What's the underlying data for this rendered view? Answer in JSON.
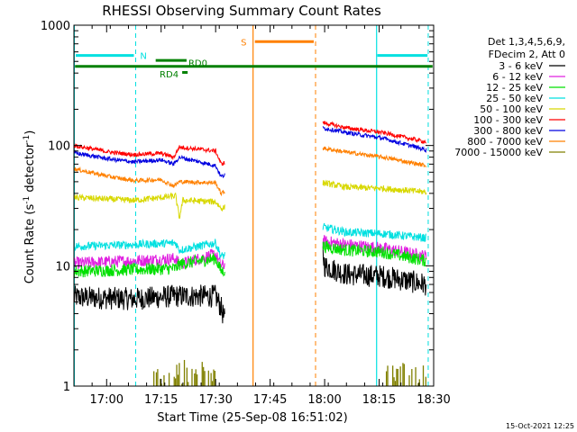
{
  "chart_data": {
    "type": "line",
    "title": "RHESSI Observing Summary Count Rates",
    "xlabel": "Start Time (25-Sep-08 16:51:02)",
    "ylabel_main": "Count Rate (s",
    "ylabel_sup1": "-1",
    "ylabel_mid": " detector",
    "ylabel_sup2": "-1",
    "ylabel_end": ")",
    "x_axis": {
      "min_minutes": 0,
      "max_minutes": 99,
      "ticks": [
        {
          "m": 9,
          "label": "17:00"
        },
        {
          "m": 24,
          "label": "17:15"
        },
        {
          "m": 39,
          "label": "17:30"
        },
        {
          "m": 54,
          "label": "17:45"
        },
        {
          "m": 69,
          "label": "18:00"
        },
        {
          "m": 84,
          "label": "18:15"
        },
        {
          "m": 99,
          "label": "18:30"
        }
      ]
    },
    "y_axis": {
      "scale": "log",
      "min": 1,
      "max": 1000,
      "ticks": [
        {
          "v": 1,
          "label": "1"
        },
        {
          "v": 10,
          "label": "10"
        },
        {
          "v": 100,
          "label": "100"
        },
        {
          "v": 1000,
          "label": "1000"
        }
      ]
    },
    "legend_title": [
      "Det 1,3,4,5,6,9,",
      "FDecim 2, Att 0"
    ],
    "legend_placement": "right",
    "series": [
      {
        "name": "3 - 6 keV",
        "color": "#000000",
        "points": [
          [
            0,
            5.5
          ],
          [
            16.5,
            5.3
          ],
          [
            28,
            5.6
          ],
          [
            39,
            5.6
          ],
          [
            40.5,
            4.5
          ],
          [
            41.5,
            3.5
          ],
          [
            68.5,
            13
          ],
          [
            69,
            10
          ],
          [
            75,
            8.5
          ],
          [
            85,
            8.2
          ],
          [
            97,
            7
          ]
        ]
      },
      {
        "name": "6 - 12 keV",
        "color": "#e020e0",
        "points": [
          [
            0,
            10.5
          ],
          [
            16.5,
            11
          ],
          [
            28,
            11.5
          ],
          [
            29,
            10.3
          ],
          [
            39,
            12.5
          ],
          [
            40.5,
            10
          ],
          [
            68.5,
            16
          ],
          [
            75,
            15
          ],
          [
            85,
            14
          ],
          [
            97,
            12
          ]
        ]
      },
      {
        "name": "12 - 25 keV",
        "color": "#00e000",
        "points": [
          [
            0,
            9
          ],
          [
            16.5,
            9.3
          ],
          [
            28,
            9.5
          ],
          [
            29,
            10.3
          ],
          [
            39,
            11.5
          ],
          [
            40.5,
            9
          ],
          [
            68.5,
            14.5
          ],
          [
            75,
            13.5
          ],
          [
            85,
            13
          ],
          [
            97,
            11
          ]
        ]
      },
      {
        "name": "25 - 50 keV",
        "color": "#00e0e0",
        "points": [
          [
            0,
            14.5
          ],
          [
            16.5,
            15
          ],
          [
            28,
            15.5
          ],
          [
            29,
            13.5
          ],
          [
            39,
            15.5
          ],
          [
            40.5,
            12
          ],
          [
            68.5,
            21
          ],
          [
            75,
            19
          ],
          [
            85,
            18.5
          ],
          [
            97,
            17
          ]
        ]
      },
      {
        "name": "50 - 100 keV",
        "color": "#d8d800",
        "points": [
          [
            0,
            37
          ],
          [
            16.5,
            35
          ],
          [
            28,
            38
          ],
          [
            29,
            25
          ],
          [
            30,
            35
          ],
          [
            39,
            34
          ],
          [
            40.5,
            30
          ],
          [
            68.5,
            49
          ],
          [
            75,
            45
          ],
          [
            85,
            44
          ],
          [
            97,
            41
          ]
        ]
      },
      {
        "name": "100 - 300 keV",
        "color": "#ff0000",
        "points": [
          [
            0,
            100
          ],
          [
            10,
            88
          ],
          [
            16.5,
            84
          ],
          [
            24,
            86
          ],
          [
            27.5,
            80
          ],
          [
            29,
            97
          ],
          [
            39,
            90
          ],
          [
            40.5,
            70
          ],
          [
            68.5,
            155
          ],
          [
            75,
            140
          ],
          [
            85,
            128
          ],
          [
            97,
            107
          ]
        ]
      },
      {
        "name": "300 - 800 keV",
        "color": "#0000e0",
        "points": [
          [
            0,
            87
          ],
          [
            10,
            77
          ],
          [
            16.5,
            73
          ],
          [
            24,
            76
          ],
          [
            27.5,
            70
          ],
          [
            29,
            80
          ],
          [
            39,
            68
          ],
          [
            40.5,
            55
          ],
          [
            68.5,
            140
          ],
          [
            75,
            128
          ],
          [
            85,
            115
          ],
          [
            97,
            92
          ]
        ]
      },
      {
        "name": "800 - 7000 keV",
        "color": "#ff8000",
        "points": [
          [
            0,
            64
          ],
          [
            10,
            55
          ],
          [
            16.5,
            51
          ],
          [
            24,
            52
          ],
          [
            27.5,
            46
          ],
          [
            29,
            50
          ],
          [
            39,
            49
          ],
          [
            40.5,
            40
          ],
          [
            68.5,
            95
          ],
          [
            75,
            88
          ],
          [
            85,
            80
          ],
          [
            97,
            68
          ]
        ]
      },
      {
        "name": "7000 - 15000 keV",
        "color": "#808000",
        "points": []
      }
    ],
    "annotations": [
      {
        "text": "N",
        "color": "#00e0e0"
      },
      {
        "text": "S",
        "color": "#ff8000"
      },
      {
        "text": "RD0",
        "color": "#008000"
      },
      {
        "text": "RD4",
        "color": "#008000"
      }
    ]
  },
  "timestamp": "15-Oct-2021 12:25"
}
